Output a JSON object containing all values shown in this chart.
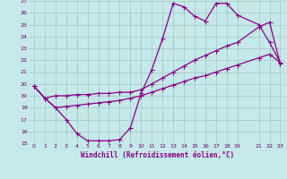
{
  "xlabel": "Windchill (Refroidissement éolien,°C)",
  "bg_color": "#c5e8e8",
  "grid_color": "#a8cccc",
  "line_color": "#880088",
  "xlim": [
    -0.5,
    23.5
  ],
  "ylim": [
    15,
    27
  ],
  "xticks": [
    0,
    1,
    2,
    3,
    4,
    5,
    6,
    7,
    8,
    9,
    10,
    11,
    12,
    13,
    14,
    15,
    16,
    17,
    18,
    19,
    21,
    22,
    23
  ],
  "yticks": [
    15,
    16,
    17,
    18,
    19,
    20,
    21,
    22,
    23,
    24,
    25,
    26,
    27
  ],
  "line1_x": [
    0,
    1,
    2,
    3,
    4,
    5,
    6,
    7,
    8,
    9,
    10,
    11,
    12,
    13,
    14,
    15,
    16,
    17,
    18,
    19,
    21,
    22,
    23
  ],
  "line1_y": [
    19.8,
    18.8,
    18.0,
    17.0,
    15.8,
    15.2,
    15.2,
    15.2,
    15.3,
    16.3,
    19.2,
    21.2,
    23.8,
    26.8,
    26.5,
    25.7,
    25.3,
    26.8,
    26.8,
    25.8,
    25.0,
    23.5,
    21.8
  ],
  "line2_x": [
    0,
    1,
    2,
    3,
    4,
    5,
    6,
    7,
    8,
    9,
    10,
    11,
    12,
    13,
    14,
    15,
    16,
    17,
    18,
    19,
    21,
    22,
    23
  ],
  "line2_y": [
    19.8,
    18.8,
    19.0,
    19.0,
    19.1,
    19.1,
    19.2,
    19.2,
    19.3,
    19.3,
    19.5,
    20.0,
    20.5,
    21.0,
    21.5,
    22.0,
    22.4,
    22.8,
    23.2,
    23.5,
    24.8,
    25.2,
    21.7
  ],
  "line3_x": [
    0,
    1,
    2,
    3,
    4,
    5,
    6,
    7,
    8,
    9,
    10,
    11,
    12,
    13,
    14,
    15,
    16,
    17,
    18,
    19,
    21,
    22,
    23
  ],
  "line3_y": [
    19.8,
    18.8,
    18.0,
    18.1,
    18.2,
    18.3,
    18.4,
    18.5,
    18.6,
    18.8,
    19.0,
    19.3,
    19.6,
    19.9,
    20.2,
    20.5,
    20.7,
    21.0,
    21.3,
    21.6,
    22.2,
    22.5,
    21.8
  ]
}
